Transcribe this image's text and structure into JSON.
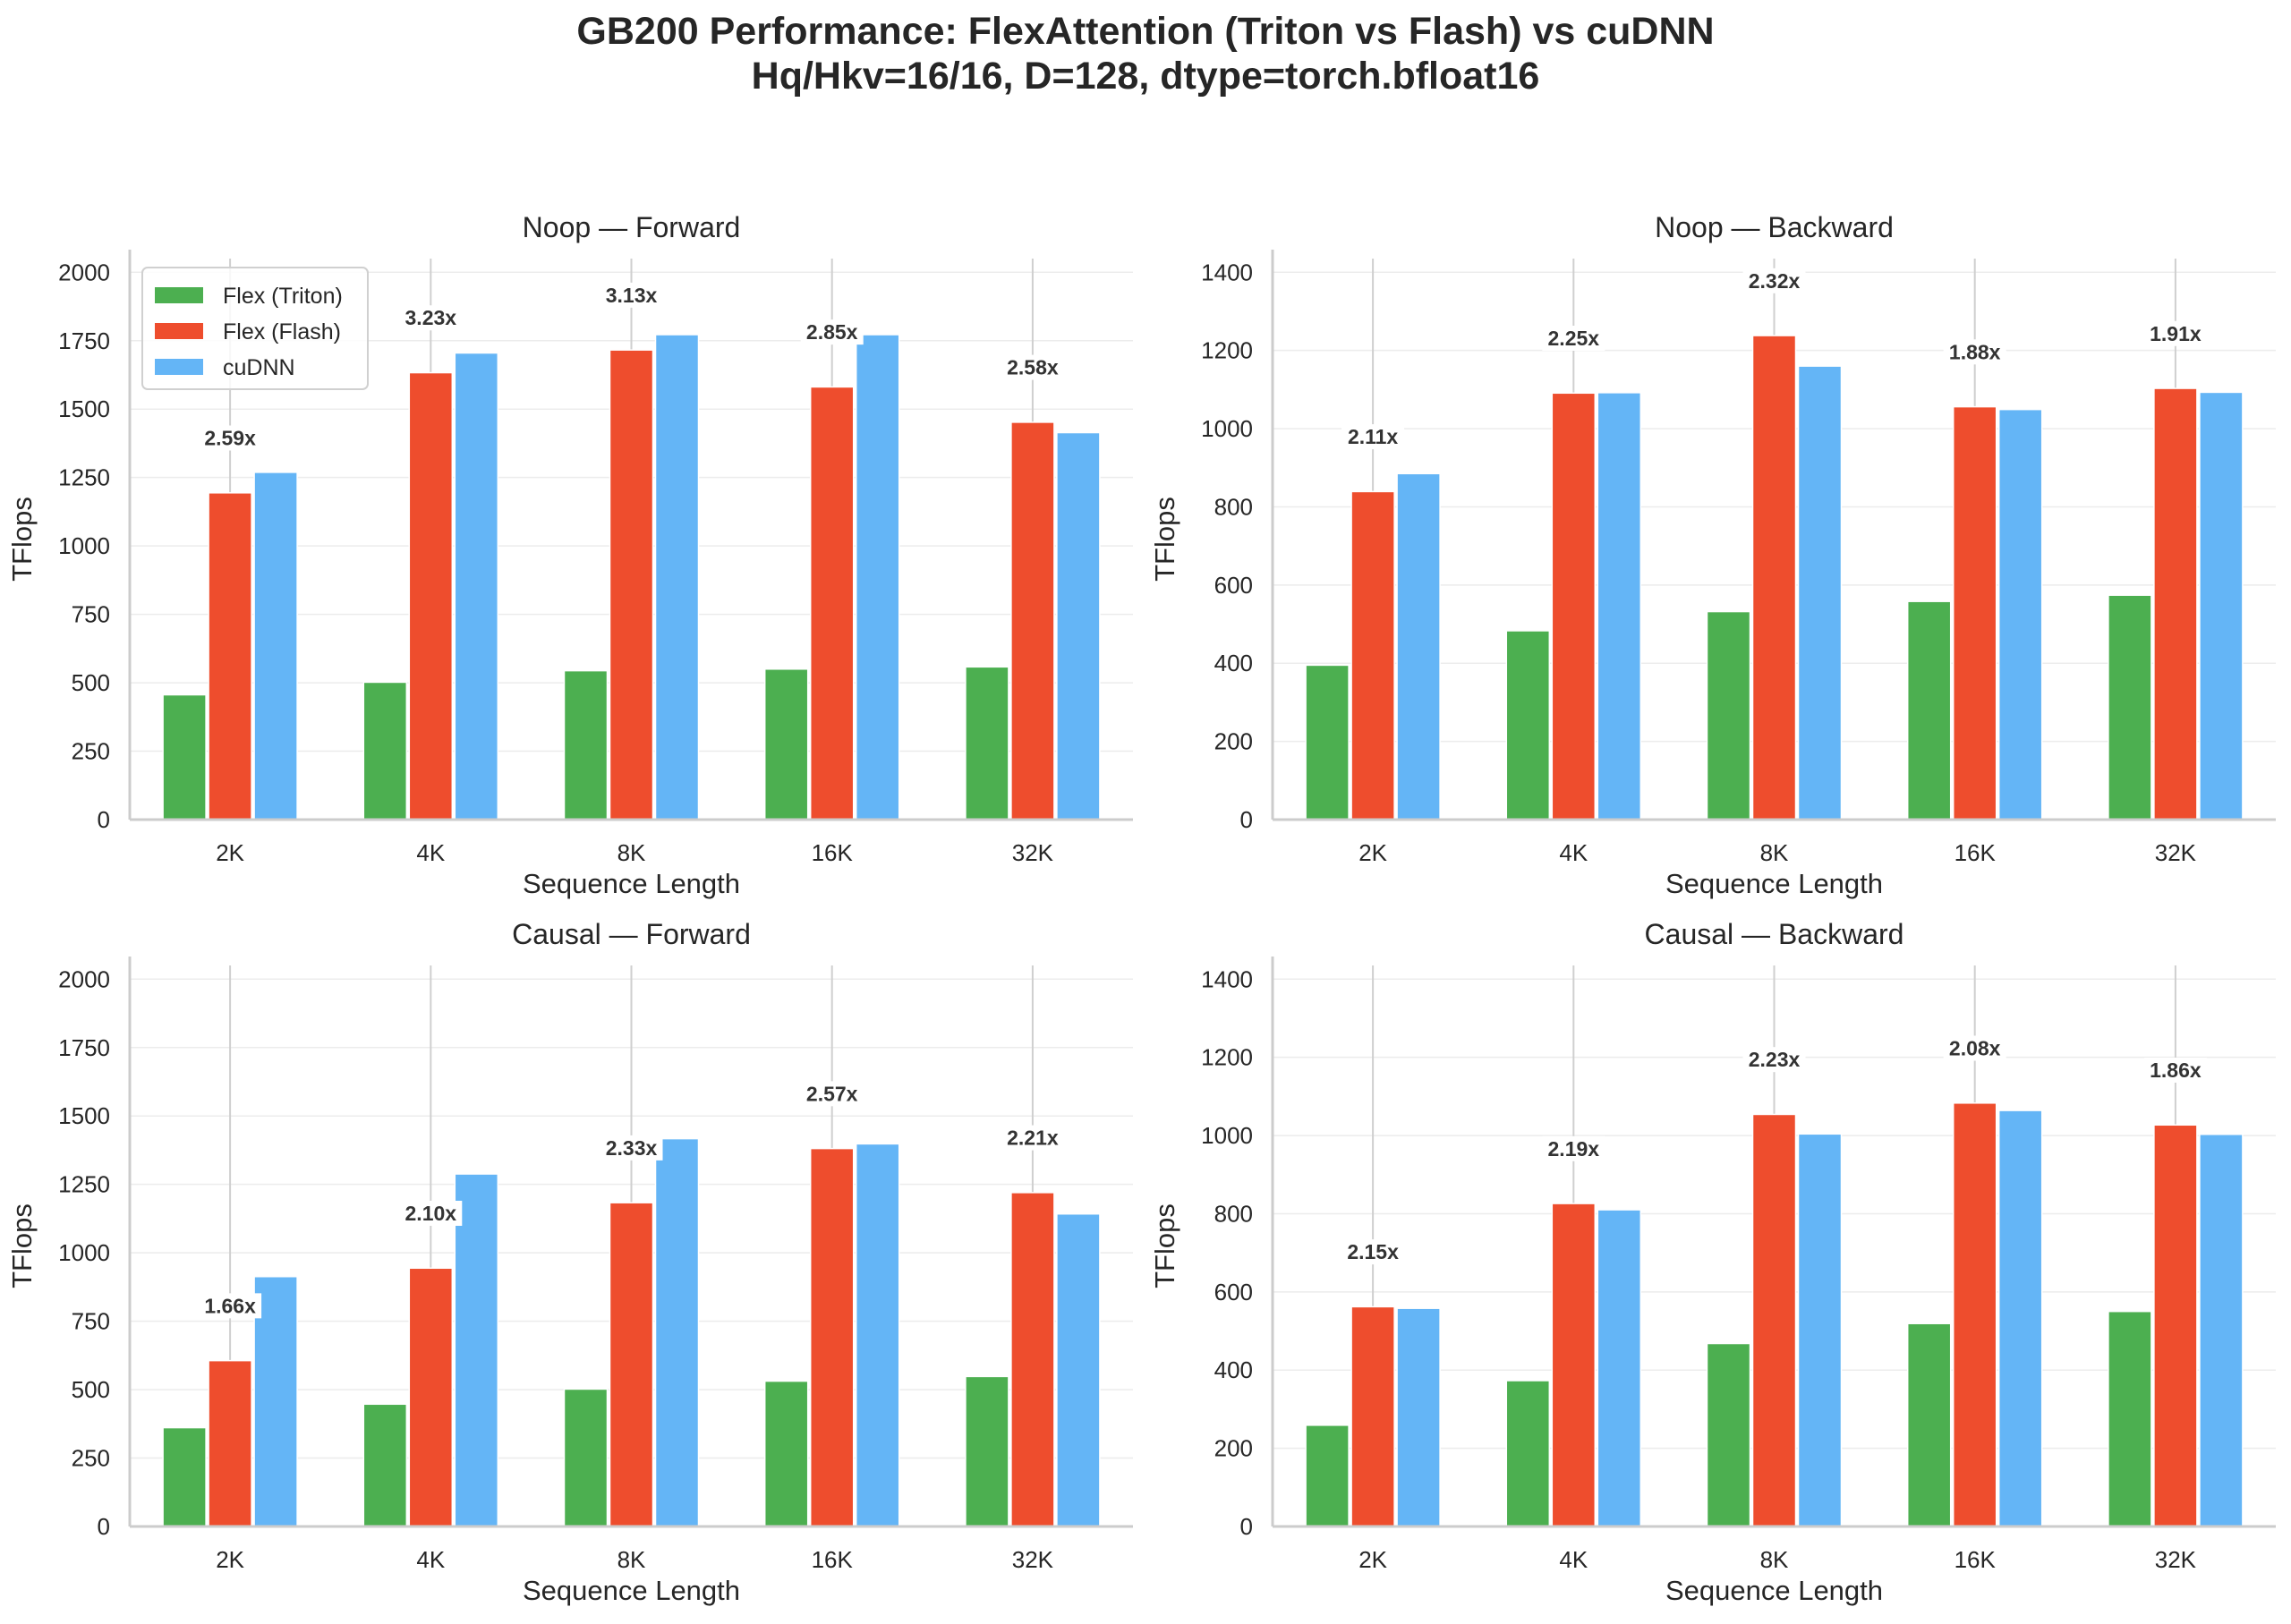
{
  "figure": {
    "title_line1": "GB200 Performance: FlexAttention (Triton vs Flash) vs cuDNN",
    "title_line2": "Hq/Hkv=16/16, D=128, dtype=torch.bfloat16"
  },
  "colors": {
    "Flex (Triton)": "#4CAF50",
    "Flex (Flash)": "#EE4D2D",
    "cuDNN": "#64B5F6"
  },
  "chart_data": [
    {
      "type": "bar",
      "title": "Noop — Forward",
      "xlabel": "Sequence Length",
      "ylabel": "TFlops",
      "categories": [
        "2K",
        "4K",
        "8K",
        "16K",
        "32K"
      ],
      "ylim": [
        0,
        2050
      ],
      "yticks": [
        0,
        250,
        500,
        750,
        1000,
        1250,
        1500,
        1750,
        2000
      ],
      "grid": "y",
      "legend": "top-left",
      "series": [
        {
          "name": "Flex (Triton)",
          "values": [
            456,
            502,
            544,
            550,
            558
          ]
        },
        {
          "name": "Flex (Flash)",
          "values": [
            1194,
            1633,
            1716,
            1581,
            1452
          ]
        },
        {
          "name": "cuDNN",
          "values": [
            1269,
            1705,
            1772,
            1772,
            1414
          ]
        }
      ],
      "annotations": [
        "2.59x",
        "3.23x",
        "3.13x",
        "2.85x",
        "2.58x"
      ]
    },
    {
      "type": "bar",
      "title": "Noop — Backward",
      "xlabel": "Sequence Length",
      "ylabel": "TFlops",
      "categories": [
        "2K",
        "4K",
        "8K",
        "16K",
        "32K"
      ],
      "ylim": [
        0,
        1435
      ],
      "yticks": [
        0,
        200,
        400,
        600,
        800,
        1000,
        1200,
        1400
      ],
      "grid": "y",
      "legend": "none",
      "series": [
        {
          "name": "Flex (Triton)",
          "values": [
            395,
            483,
            532,
            558,
            574
          ]
        },
        {
          "name": "Flex (Flash)",
          "values": [
            839,
            1091,
            1238,
            1056,
            1103
          ]
        },
        {
          "name": "cuDNN",
          "values": [
            885,
            1092,
            1160,
            1049,
            1093
          ]
        }
      ],
      "annotations": [
        "2.11x",
        "2.25x",
        "2.32x",
        "1.88x",
        "1.91x"
      ]
    },
    {
      "type": "bar",
      "title": "Causal — Forward",
      "xlabel": "Sequence Length",
      "ylabel": "TFlops",
      "categories": [
        "2K",
        "4K",
        "8K",
        "16K",
        "32K"
      ],
      "ylim": [
        0,
        2050
      ],
      "yticks": [
        0,
        250,
        500,
        750,
        1000,
        1250,
        1500,
        1750,
        2000
      ],
      "grid": "y",
      "legend": "none",
      "series": [
        {
          "name": "Flex (Triton)",
          "values": [
            361,
            447,
            502,
            531,
            548
          ]
        },
        {
          "name": "Flex (Flash)",
          "values": [
            606,
            944,
            1183,
            1381,
            1220
          ]
        },
        {
          "name": "cuDNN",
          "values": [
            913,
            1288,
            1417,
            1398,
            1142
          ]
        }
      ],
      "annotations": [
        "1.66x",
        "2.10x",
        "2.33x",
        "2.57x",
        "2.21x"
      ]
    },
    {
      "type": "bar",
      "title": "Causal — Backward",
      "xlabel": "Sequence Length",
      "ylabel": "TFlops",
      "categories": [
        "2K",
        "4K",
        "8K",
        "16K",
        "32K"
      ],
      "ylim": [
        0,
        1435
      ],
      "yticks": [
        0,
        200,
        400,
        600,
        800,
        1000,
        1200,
        1400
      ],
      "grid": "y",
      "legend": "none",
      "series": [
        {
          "name": "Flex (Triton)",
          "values": [
            259,
            373,
            468,
            519,
            550
          ]
        },
        {
          "name": "Flex (Flash)",
          "values": [
            562,
            826,
            1054,
            1083,
            1027
          ]
        },
        {
          "name": "cuDNN",
          "values": [
            558,
            810,
            1004,
            1064,
            1003
          ]
        }
      ],
      "annotations": [
        "2.15x",
        "2.19x",
        "2.23x",
        "2.08x",
        "1.86x"
      ]
    }
  ]
}
